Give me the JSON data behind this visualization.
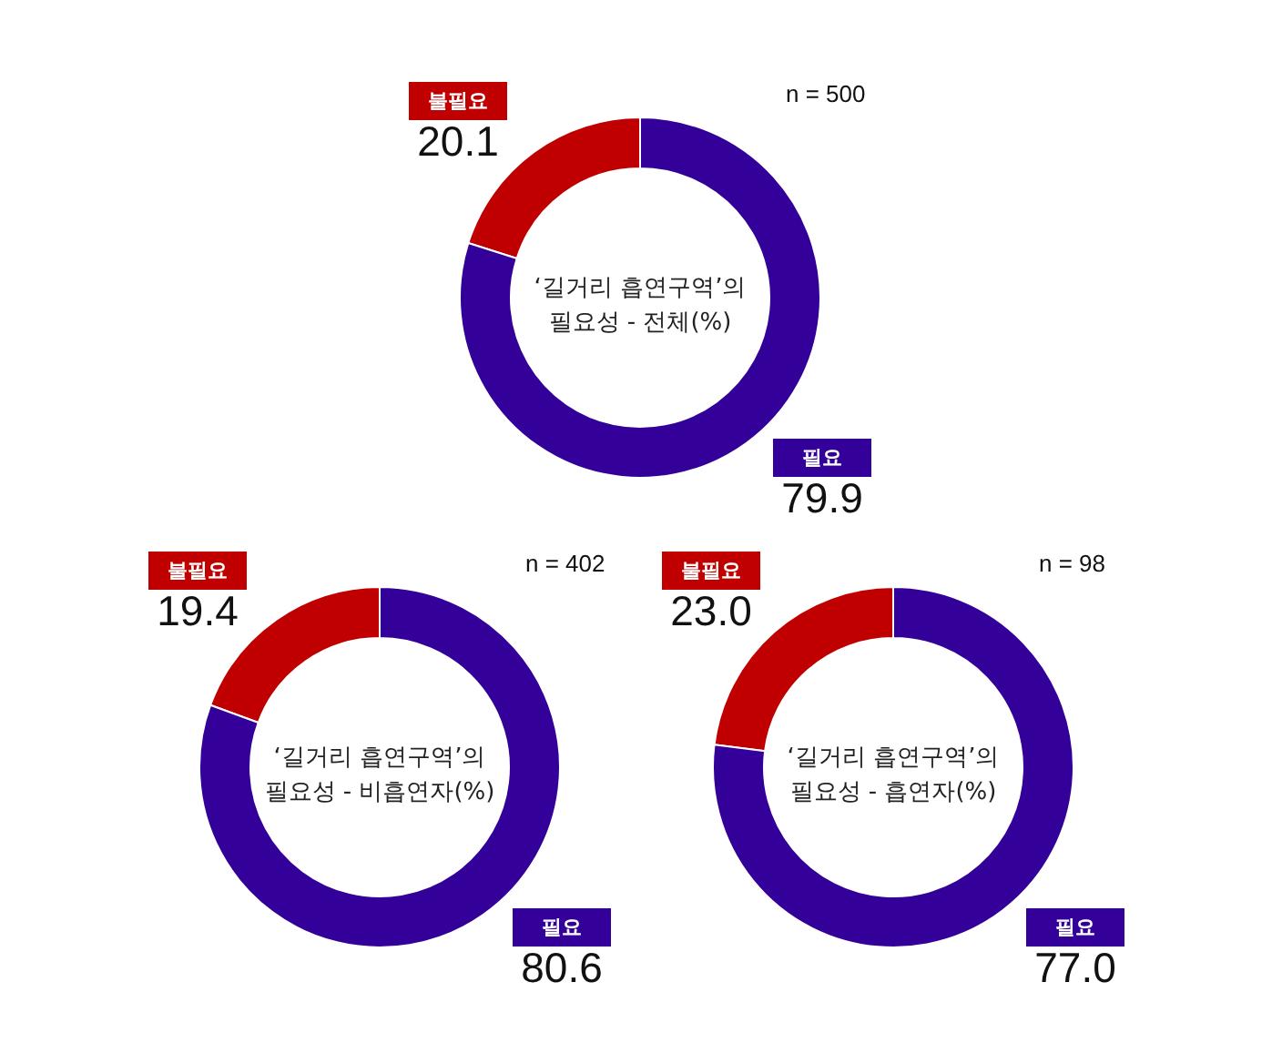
{
  "chart_data": [
    {
      "type": "donut",
      "title": "‘길거리 흡연구역’의\n필요성 - 전체(%)",
      "categories": [
        "불필요",
        "필요"
      ],
      "values": [
        20.1,
        79.9
      ],
      "colors": [
        "#c00000",
        "#330099"
      ],
      "value_labels": [
        "20.1",
        "79.9"
      ],
      "annotations": [
        "n = 500"
      ]
    },
    {
      "type": "donut",
      "title": "‘길거리 흡연구역’의\n필요성 - 비흡연자(%)",
      "categories": [
        "불필요",
        "필요"
      ],
      "values": [
        19.4,
        80.6
      ],
      "colors": [
        "#c00000",
        "#330099"
      ],
      "value_labels": [
        "19.4",
        "80.6"
      ],
      "annotations": [
        "n = 402"
      ]
    },
    {
      "type": "donut",
      "title": "‘길거리 흡연구역’의\n필요성 - 흡연자(%)",
      "categories": [
        "불필요",
        "필요"
      ],
      "values": [
        23.0,
        77.0
      ],
      "colors": [
        "#c00000",
        "#330099"
      ],
      "value_labels": [
        "23.0",
        "77.0"
      ],
      "annotations": [
        "n = 98"
      ]
    }
  ]
}
